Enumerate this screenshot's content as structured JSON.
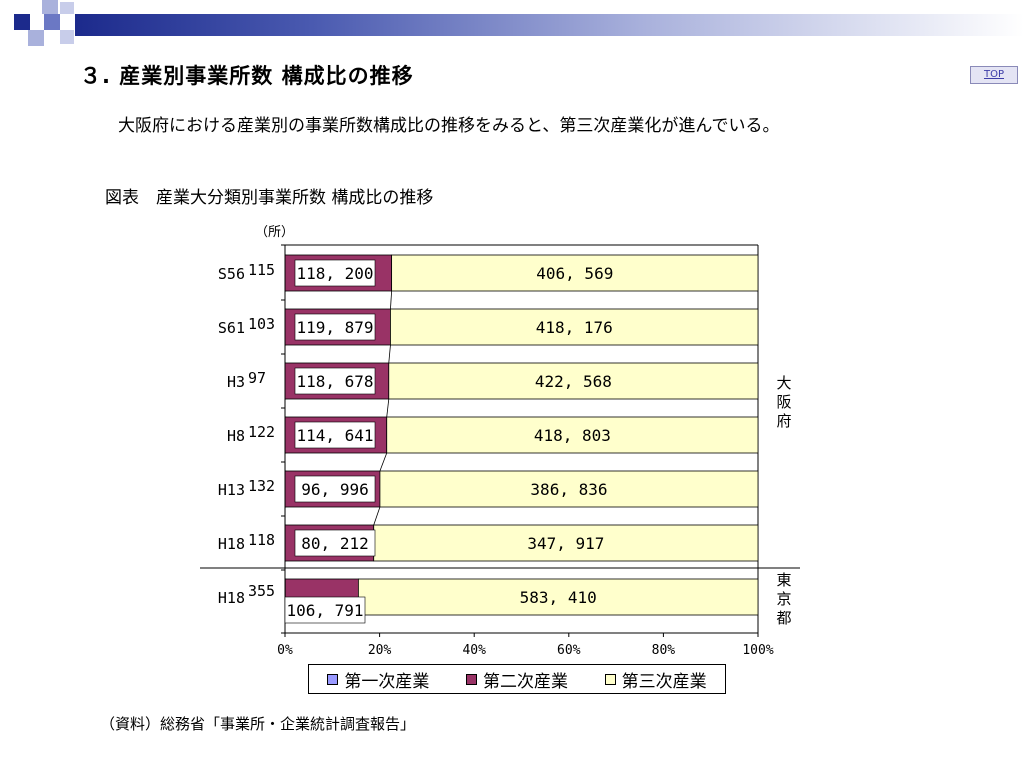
{
  "header": {
    "title": "３. 産業別事業所数 構成比の推移",
    "top_link": "TOP",
    "lead": "大阪府における産業別の事業所数構成比の推移をみると、第三次産業化が進んでいる。"
  },
  "figure": {
    "title": "図表　産業大分類別事業所数 構成比の推移",
    "unit": "（所）",
    "region_labels": [
      "大\n阪\n府",
      "東\n京\n都"
    ]
  },
  "source": "（資料）総務省「事業所・企業統計調査報告」",
  "chart_data": {
    "type": "bar",
    "orientation": "horizontal",
    "stacked": "percent",
    "categories": [
      "S56",
      "S61",
      "H3",
      "H8",
      "H13",
      "H18",
      "H18"
    ],
    "groups": [
      "大阪府",
      "大阪府",
      "大阪府",
      "大阪府",
      "大阪府",
      "大阪府",
      "東京都"
    ],
    "series": [
      {
        "name": "第一次産業",
        "color": "#9999ff",
        "values": [
          115,
          103,
          97,
          122,
          132,
          118,
          355
        ],
        "labels": [
          "115",
          "103",
          "97",
          "122",
          "132",
          "118",
          "355"
        ]
      },
      {
        "name": "第二次産業",
        "color": "#993366",
        "values": [
          118200,
          119879,
          118678,
          114641,
          96996,
          80212,
          106791
        ],
        "labels": [
          "118, 200",
          "119, 879",
          "118, 678",
          "114, 641",
          "96, 996",
          "80, 212",
          "106, 791"
        ]
      },
      {
        "name": "第三次産業",
        "color": "#ffffcc",
        "values": [
          406569,
          418176,
          422568,
          418803,
          386836,
          347917,
          583410
        ],
        "labels": [
          "406, 569",
          "418, 176",
          "422, 568",
          "418, 803",
          "386, 836",
          "347, 917",
          "583, 410"
        ]
      }
    ],
    "xlim": [
      0,
      100
    ],
    "x_ticks": [
      "0%",
      "20%",
      "40%",
      "60%",
      "80%",
      "100%"
    ],
    "legend_position": "bottom",
    "grid": false
  }
}
